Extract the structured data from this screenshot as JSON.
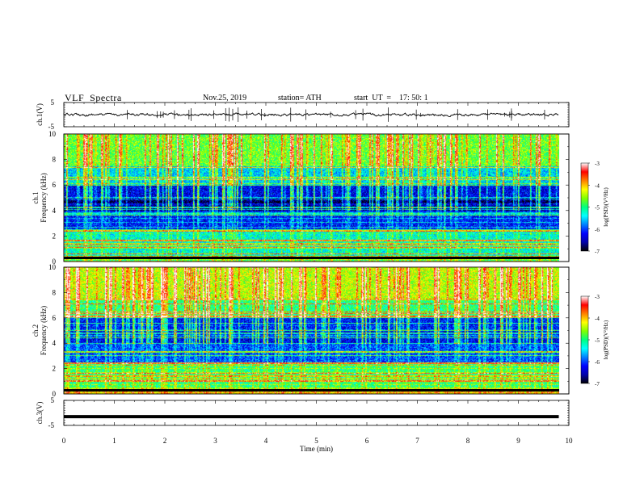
{
  "header": {
    "title": "VLF  Spectra",
    "date": "Nov.25, 2019",
    "station": "station= ATH",
    "start": "start  UT  =    17: 50: 1"
  },
  "chart_data": [
    {
      "type": "line",
      "panel": "ch1-waveform",
      "ylabel": "ch.1(V)",
      "ylim": [
        -5,
        5
      ],
      "yticks": [
        "5",
        "-5"
      ],
      "xlim": [
        0,
        10
      ],
      "x_data_end": 9.8,
      "trace_level": 0,
      "trace_noise": 0.3,
      "trace_color": "#000000"
    },
    {
      "type": "heatmap",
      "panel": "ch1-spectrogram",
      "ylabel_lines": [
        "ch.1",
        "Frequency  (kHz)"
      ],
      "ylim": [
        0,
        10
      ],
      "yticks": [
        "0",
        "2",
        "4",
        "6",
        "8",
        "10"
      ],
      "xlim": [
        0,
        10
      ],
      "x_data_end": 9.8,
      "colorbar": {
        "label": "log(PSD)(V²/Hz)",
        "range": [
          -7,
          -3
        ],
        "ticks": [
          "-3",
          "-4",
          "-5",
          "-6",
          "-7"
        ],
        "colormap": [
          "#000000",
          "#0000aa",
          "#0000ff",
          "#0080ff",
          "#00ffff",
          "#00ff80",
          "#80ff00",
          "#ffff00",
          "#ff8000",
          "#ff0000",
          "#ffffff"
        ]
      },
      "description_levels": {
        "0-0.5kHz": -5.0,
        "0.5-2.5kHz": -5.3,
        "2.5-4kHz": -6.2,
        "4-5kHz": -6.8,
        "5-6kHz": -6.3,
        "6-7.5kHz": -5.5,
        "7.5-10kHz": -4.7
      }
    },
    {
      "type": "heatmap",
      "panel": "ch2-spectrogram",
      "ylabel_lines": [
        "ch.2",
        "Frequency  (kHz)"
      ],
      "ylim": [
        0,
        10
      ],
      "yticks": [
        "0",
        "2",
        "4",
        "6",
        "8",
        "10"
      ],
      "xlim": [
        0,
        10
      ],
      "x_data_end": 9.8,
      "colorbar": {
        "label": "log(PSD)(V²/Hz)",
        "range": [
          -7,
          -3
        ],
        "ticks": [
          "-3",
          "-4",
          "-5",
          "-6",
          "-7"
        ],
        "colormap": [
          "#000000",
          "#0000aa",
          "#0000ff",
          "#0080ff",
          "#00ffff",
          "#00ff80",
          "#80ff00",
          "#ffff00",
          "#ff8000",
          "#ff0000",
          "#ffffff"
        ]
      },
      "description_levels": {
        "0-0.5kHz": -5.0,
        "0.5-2.5kHz": -5.0,
        "2.5-4kHz": -6.0,
        "4-5kHz": -6.3,
        "5-6kHz": -6.2,
        "6-7.5kHz": -5.0,
        "7.5-10kHz": -4.4
      }
    },
    {
      "type": "line",
      "panel": "ch3-waveform",
      "ylabel": "ch.3(V)",
      "ylim": [
        -5,
        5
      ],
      "yticks": [
        "5",
        "-5"
      ],
      "xlim": [
        0,
        10
      ],
      "x_data_end": 9.8,
      "trace_level": -1.5,
      "trace_color": "#000000",
      "xlabel": "Time  (min)",
      "xticks": [
        "0",
        "1",
        "2",
        "3",
        "4",
        "5",
        "6",
        "7",
        "8",
        "9",
        "10"
      ]
    }
  ]
}
